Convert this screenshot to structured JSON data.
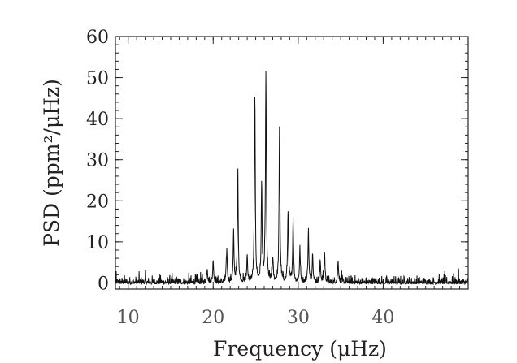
{
  "chart_data": {
    "type": "line",
    "title": "",
    "xlabel": "Frequency (μHz)",
    "ylabel": "PSD (ppm²/μHz)",
    "xlim": [
      8.5,
      50
    ],
    "ylim": [
      -1.5,
      60
    ],
    "xticks": [
      10,
      20,
      30,
      40
    ],
    "yticks": [
      0,
      10,
      20,
      30,
      40,
      50,
      60
    ],
    "grid": false,
    "line_color": "#111111",
    "noise_level": 0.6,
    "peaks": [
      {
        "x": 19.3,
        "y": 3.5
      },
      {
        "x": 20.0,
        "y": 5.5
      },
      {
        "x": 21.6,
        "y": 8.0
      },
      {
        "x": 22.4,
        "y": 11.5
      },
      {
        "x": 22.9,
        "y": 26.5
      },
      {
        "x": 24.0,
        "y": 6.5
      },
      {
        "x": 24.9,
        "y": 46.0
      },
      {
        "x": 25.7,
        "y": 24.0
      },
      {
        "x": 26.2,
        "y": 51.5
      },
      {
        "x": 27.0,
        "y": 6.0
      },
      {
        "x": 27.8,
        "y": 38.0
      },
      {
        "x": 28.8,
        "y": 17.5
      },
      {
        "x": 29.4,
        "y": 15.5
      },
      {
        "x": 30.2,
        "y": 8.0
      },
      {
        "x": 31.2,
        "y": 12.5
      },
      {
        "x": 31.7,
        "y": 7.0
      },
      {
        "x": 32.6,
        "y": 5.0
      },
      {
        "x": 33.1,
        "y": 7.5
      },
      {
        "x": 34.7,
        "y": 5.5
      }
    ]
  }
}
